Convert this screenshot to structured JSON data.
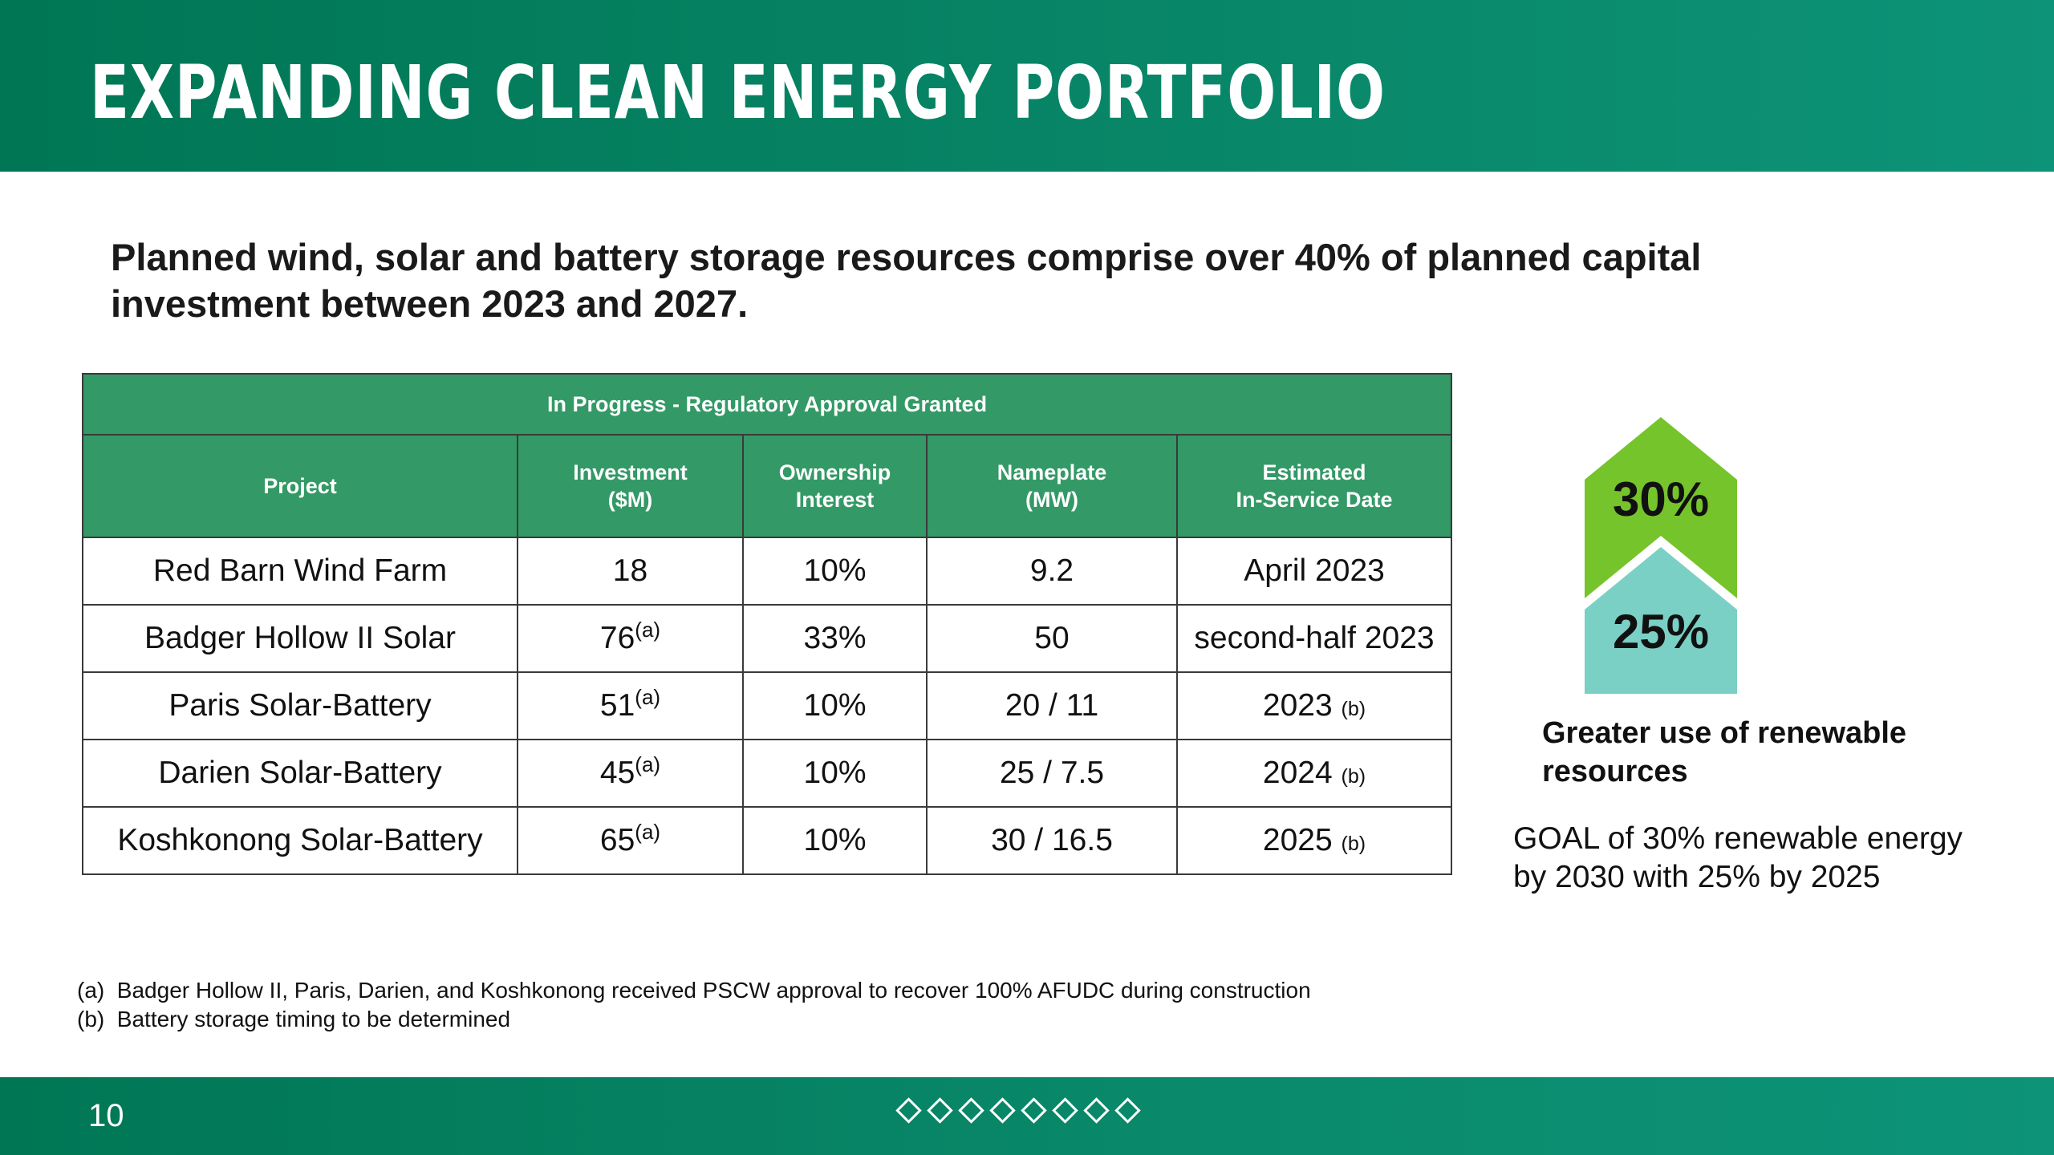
{
  "header": {
    "title": "EXPANDING CLEAN ENERGY PORTFOLIO"
  },
  "subtitle": "Planned wind, solar and battery storage resources comprise over 40% of planned capital investment between 2023 and 2027.",
  "table": {
    "group_header": "In Progress - Regulatory Approval Granted",
    "columns": [
      "Project",
      "Investment\n($M)",
      "Ownership\nInterest",
      "Nameplate\n(MW)",
      "Estimated\nIn-Service Date"
    ],
    "rows": [
      {
        "project": "Red Barn Wind Farm",
        "investment": "18",
        "investment_note": "",
        "ownership": "10%",
        "nameplate": "9.2",
        "date": "April 2023",
        "date_note": ""
      },
      {
        "project": "Badger Hollow II Solar",
        "investment": "76",
        "investment_note": "(a)",
        "ownership": "33%",
        "nameplate": "50",
        "date": "second-half 2023",
        "date_note": ""
      },
      {
        "project": "Paris Solar-Battery",
        "investment": "51",
        "investment_note": "(a)",
        "ownership": "10%",
        "nameplate": "20 / 11",
        "date": "2023",
        "date_note": "(b)"
      },
      {
        "project": "Darien Solar-Battery",
        "investment": "45",
        "investment_note": "(a)",
        "ownership": "10%",
        "nameplate": "25 / 7.5",
        "date": "2024",
        "date_note": "(b)"
      },
      {
        "project": "Koshkonong Solar-Battery",
        "investment": "65",
        "investment_note": "(a)",
        "ownership": "10%",
        "nameplate": "30 / 16.5",
        "date": "2025",
        "date_note": "(b)"
      }
    ]
  },
  "graphic": {
    "top_pct": "30%",
    "bottom_pct": "25%",
    "top_color": "#76c42b",
    "bottom_color": "#7ad0c4",
    "caption": "Greater use of renewable resources"
  },
  "goal": "GOAL of 30% renewable energy by 2030 with 25% by 2025",
  "footnotes": [
    {
      "marker": "(a)",
      "text": "Badger Hollow II, Paris, Darien, and Koshkonong received PSCW approval to recover 100% AFUDC during construction"
    },
    {
      "marker": "(b)",
      "text": "Battery storage timing to be determined"
    }
  ],
  "footer": {
    "page_number": "10",
    "decoration_icon": "diamond-outline-icon",
    "diamond_count": 8
  }
}
